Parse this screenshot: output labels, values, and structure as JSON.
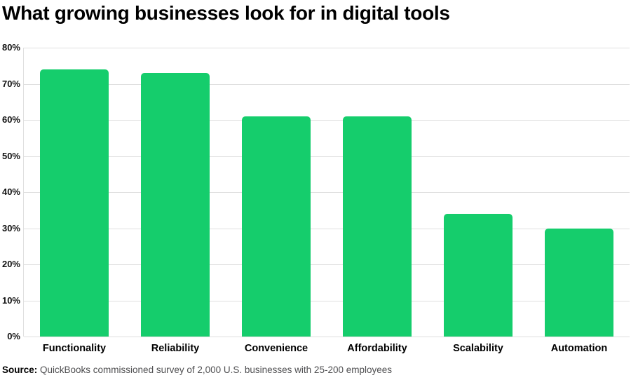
{
  "chart_data": {
    "type": "bar",
    "title": "What growing businesses look for in digital tools",
    "categories": [
      "Functionality",
      "Reliability",
      "Convenience",
      "Affordability",
      "Scalability",
      "Automation"
    ],
    "values": [
      74,
      73,
      61,
      61,
      34,
      30
    ],
    "xlabel": "",
    "ylabel": "",
    "ylim": [
      0,
      80
    ],
    "ytick_step": 10,
    "ytick_labels": [
      "80%",
      "70%",
      "60%",
      "50%",
      "40%",
      "30%",
      "20%",
      "10%",
      "0%"
    ],
    "grid": true,
    "legend": "none",
    "colors": {
      "bar": "#15cd6c",
      "gridline": "#dfdfdf",
      "title_text": "#000000",
      "tick_text": "#111111"
    }
  },
  "source": {
    "label": "Source:",
    "text": " QuickBooks commissioned survey of 2,000 U.S. businesses with 25-200 employees"
  }
}
